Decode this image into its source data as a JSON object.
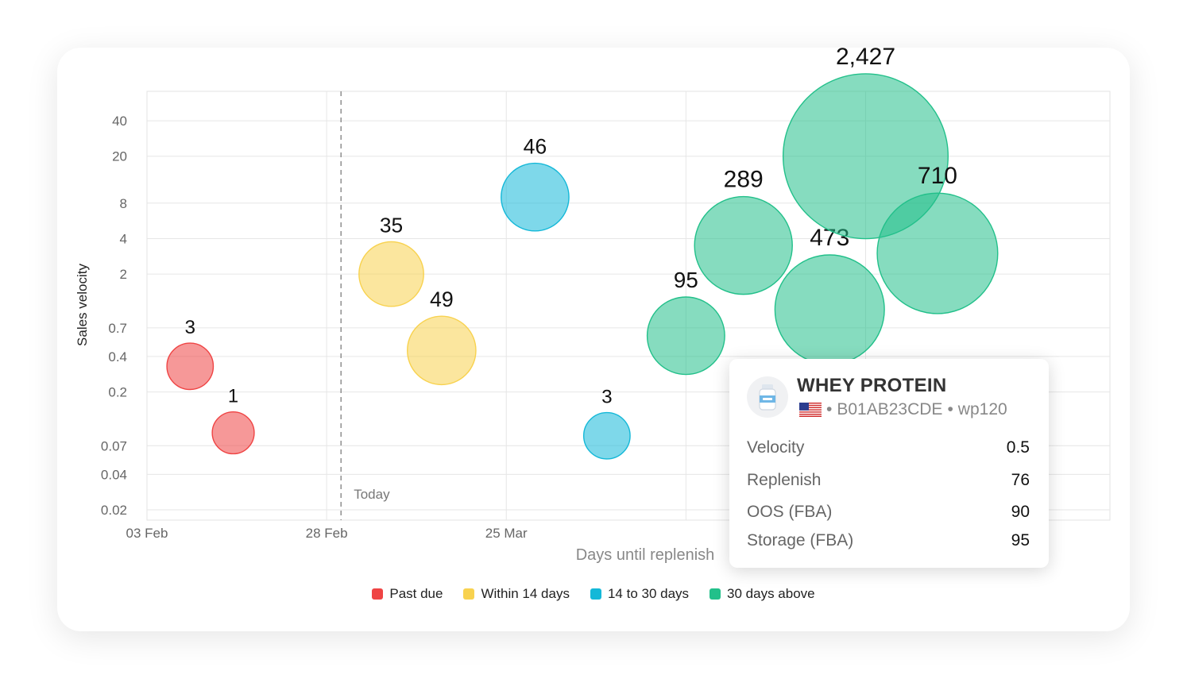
{
  "colors": {
    "past_due": "#EF4444",
    "within_14": "#F8D24F",
    "d14_30": "#14B8D8",
    "d30_above": "#22C08A"
  },
  "chart_data": {
    "type": "scatter",
    "subtype": "bubble",
    "xlabel": "Days until replenish",
    "ylabel": "Sales velocity",
    "x_tick_labels": [
      "03 Feb",
      "28 Feb",
      "25 Mar"
    ],
    "y_scale": "log",
    "y_ticks": [
      0.02,
      0.04,
      0.07,
      0.2,
      0.4,
      0.7,
      2,
      4,
      8,
      20,
      40
    ],
    "y_tick_labels": [
      "0.02",
      "0.04",
      "0.07",
      "0.2",
      "0.4",
      "0.7",
      "2",
      "4",
      "8",
      "20",
      "40"
    ],
    "ylim": [
      0.02,
      70
    ],
    "xlim": [
      "2025-02-03",
      "2025-06-17"
    ],
    "today": {
      "x": "2025-03-02",
      "label": "Today"
    },
    "grid": true,
    "legend_position": "bottom",
    "series": [
      {
        "name": "Past due",
        "color_key": "past_due",
        "points": [
          {
            "x": "2025-02-09",
            "y": 0.33,
            "size": 3,
            "label": "3"
          },
          {
            "x": "2025-02-15",
            "y": 0.09,
            "size": 1,
            "label": "1"
          }
        ]
      },
      {
        "name": "Within 14 days",
        "color_key": "within_14",
        "points": [
          {
            "x": "2025-03-09",
            "y": 2,
            "size": 35,
            "label": "35"
          },
          {
            "x": "2025-03-16",
            "y": 0.45,
            "size": 49,
            "label": "49"
          }
        ]
      },
      {
        "name": "14 to 30 days",
        "color_key": "d14_30",
        "points": [
          {
            "x": "2025-03-29",
            "y": 9,
            "size": 46,
            "label": "46"
          },
          {
            "x": "2025-04-08",
            "y": 0.085,
            "size": 3,
            "label": "3"
          }
        ]
      },
      {
        "name": "30 days above",
        "color_key": "d30_above",
        "points": [
          {
            "x": "2025-04-19",
            "y": 0.6,
            "size": 95,
            "label": "95"
          },
          {
            "x": "2025-04-27",
            "y": 3.5,
            "size": 289,
            "label": "289"
          },
          {
            "x": "2025-05-09",
            "y": 1.0,
            "size": 473,
            "label": "473"
          },
          {
            "x": "2025-05-14",
            "y": 20,
            "size": 2427,
            "label": "2,427"
          },
          {
            "x": "2025-05-24",
            "y": 3,
            "size": 710,
            "label": "710"
          }
        ]
      }
    ]
  },
  "tooltip": {
    "title": "WHEY PROTEIN",
    "asin": "B01AB23CDE",
    "sku": "wp120",
    "rows": [
      {
        "label": "Velocity",
        "value": "0.5"
      },
      {
        "label": "Replenish",
        "value": "76"
      },
      {
        "label": "OOS (FBA)",
        "value": "90"
      },
      {
        "label": "Storage (FBA)",
        "value": "95"
      }
    ]
  }
}
